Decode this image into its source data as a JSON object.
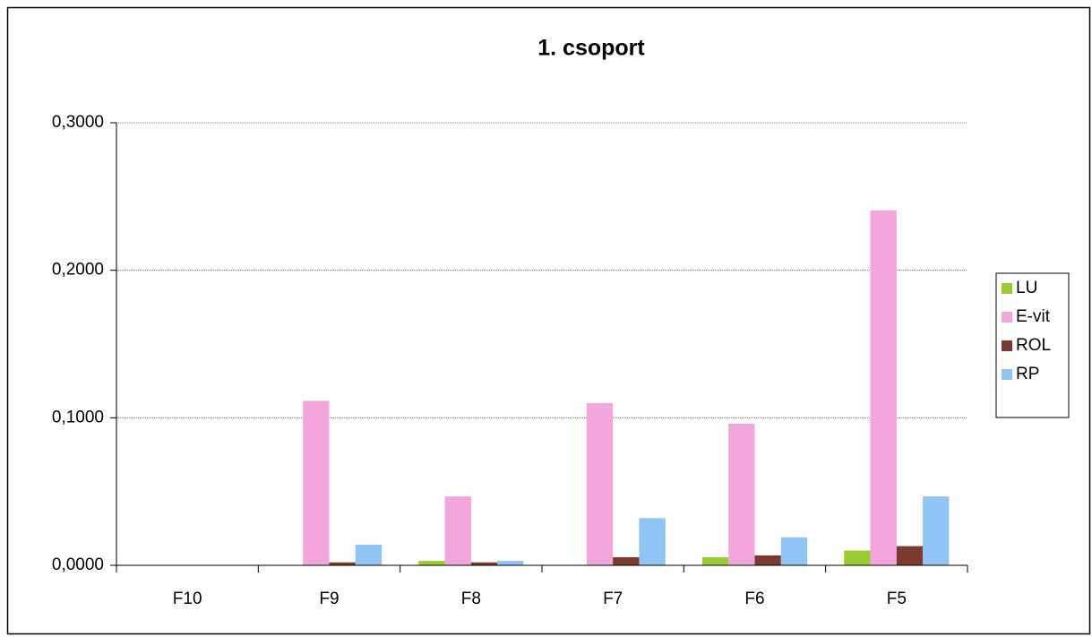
{
  "chart_data": {
    "type": "bar",
    "title": "1. csoport",
    "categories": [
      "F10",
      "F9",
      "F8",
      "F7",
      "F6",
      "F5"
    ],
    "series": [
      {
        "name": "LU",
        "color": "#99cc33",
        "values": [
          0,
          0,
          0.003,
          0,
          0.0055,
          0.01
        ]
      },
      {
        "name": "E-vit",
        "color": "#f2a6dc",
        "values": [
          0,
          0.1115,
          0.0467,
          0.11,
          0.096,
          0.2405
        ]
      },
      {
        "name": "ROL",
        "color": "#7a3b2e",
        "values": [
          0,
          0.002,
          0.002,
          0.0055,
          0.0067,
          0.013
        ]
      },
      {
        "name": "RP",
        "color": "#8fc4f5",
        "values": [
          0,
          0.014,
          0.003,
          0.032,
          0.019,
          0.0467
        ]
      }
    ],
    "ylim": [
      0,
      0.3
    ],
    "yticks": [
      {
        "value": 0,
        "label": "0,0000"
      },
      {
        "value": 0.1,
        "label": "0,1000"
      },
      {
        "value": 0.2,
        "label": "0,2000"
      },
      {
        "value": 0.3,
        "label": "0,3000"
      }
    ],
    "grid": true,
    "legend": "right"
  }
}
